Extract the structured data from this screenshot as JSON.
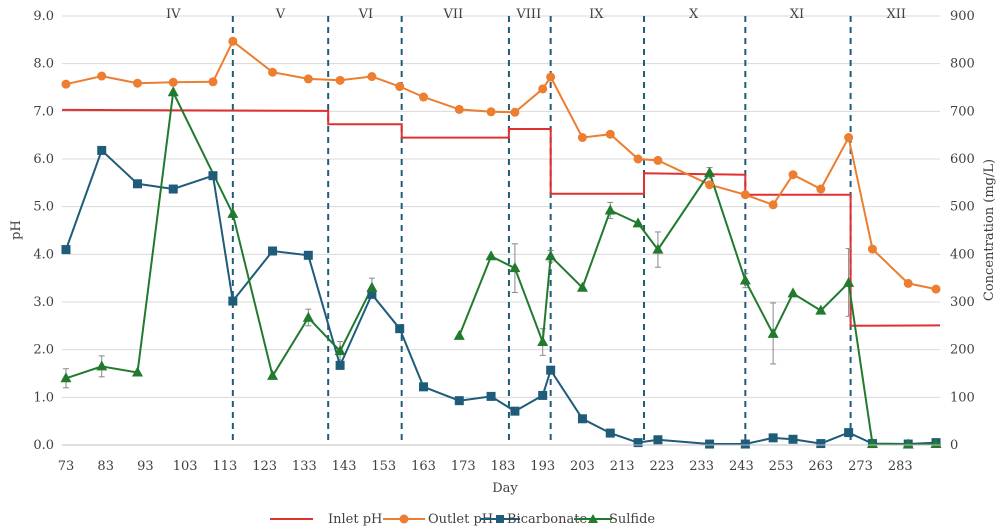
{
  "chart_data": {
    "type": "line",
    "title": "",
    "xlabel": "Day",
    "ylabel_left": "pH",
    "ylabel_right": "Concentration (mg/L)",
    "xlim": [
      72,
      293
    ],
    "ylim_left": [
      0,
      9
    ],
    "ylim_right": [
      0,
      900
    ],
    "x_ticks": [
      73,
      83,
      93,
      103,
      113,
      123,
      133,
      143,
      153,
      163,
      173,
      183,
      193,
      203,
      213,
      223,
      233,
      243,
      253,
      263,
      273,
      283
    ],
    "y_ticks_left": [
      "0.0",
      "1.0",
      "2.0",
      "3.0",
      "4.0",
      "5.0",
      "6.0",
      "7.0",
      "8.0",
      "9.0"
    ],
    "y_ticks_right": [
      "0",
      "100",
      "200",
      "300",
      "400",
      "500",
      "600",
      "700",
      "800",
      "900"
    ],
    "grid": "horizontal",
    "legend_position": "bottom",
    "phase_boundaries": [
      115,
      139,
      157.5,
      184.5,
      195,
      218.5,
      244,
      270.5
    ],
    "phases": [
      {
        "label": "IV",
        "x": 100
      },
      {
        "label": "V",
        "x": 127
      },
      {
        "label": "VI",
        "x": 148.5
      },
      {
        "label": "VII",
        "x": 170.5
      },
      {
        "label": "VIII",
        "x": 189.5
      },
      {
        "label": "IX",
        "x": 206.5
      },
      {
        "label": "X",
        "x": 231
      },
      {
        "label": "XI",
        "x": 257
      },
      {
        "label": "XII",
        "x": 282
      }
    ],
    "series": [
      {
        "name": "Inlet pH",
        "axis": "left",
        "style": "step",
        "color": "#e03030",
        "x": [
          72,
          139,
          139,
          157.5,
          157.5,
          184.5,
          184.5,
          195,
          195,
          218.5,
          218.5,
          244,
          244,
          270.5,
          270.5,
          293
        ],
        "y": [
          7.03,
          7.01,
          6.73,
          6.73,
          6.45,
          6.45,
          6.63,
          6.63,
          5.27,
          5.27,
          5.7,
          5.67,
          5.25,
          5.25,
          2.5,
          2.51
        ]
      },
      {
        "name": "Outlet pH",
        "axis": "left",
        "marker": "circle",
        "color": "#ed7d31",
        "x": [
          73,
          82,
          91,
          100,
          110,
          115,
          125,
          134,
          142,
          150,
          157,
          163,
          172,
          180,
          186,
          193,
          195,
          203,
          210,
          217,
          222,
          235,
          244,
          251,
          256,
          263,
          270,
          276,
          285,
          292
        ],
        "y": [
          7.57,
          7.74,
          7.59,
          7.61,
          7.62,
          8.47,
          7.82,
          7.68,
          7.65,
          7.73,
          7.52,
          7.3,
          7.04,
          6.99,
          6.98,
          7.47,
          7.72,
          6.45,
          6.52,
          6.0,
          5.97,
          5.46,
          5.25,
          5.04,
          5.67,
          5.37,
          6.45,
          4.11,
          3.39,
          3.27
        ]
      },
      {
        "name": "Bicarbonate",
        "axis": "right",
        "marker": "square",
        "color": "#1f5c7a",
        "x": [
          73,
          82,
          91,
          100,
          110,
          115,
          125,
          134,
          142,
          150,
          157,
          163,
          172,
          180,
          186,
          193,
          195,
          203,
          210,
          217,
          222,
          235,
          244,
          251,
          256,
          263,
          270,
          276,
          285,
          292
        ],
        "y": [
          410,
          618,
          548,
          537,
          565,
          302,
          407,
          398,
          167,
          316,
          244,
          122,
          93,
          102,
          71,
          104,
          157,
          55,
          25,
          5,
          11,
          2,
          2,
          15,
          12,
          3,
          26,
          3,
          2,
          5
        ]
      },
      {
        "name": "Sulfide",
        "axis": "right",
        "marker": "triangle",
        "color": "#217a2e",
        "segments": [
          {
            "x": [
              73,
              82,
              91,
              100,
              115,
              125,
              134,
              142,
              150
            ],
            "y": [
              140,
              165,
              152,
              740,
              485,
              145,
              267,
              197,
              330
            ]
          },
          {
            "x": [
              172,
              180,
              186,
              193,
              195,
              203,
              210,
              217,
              222,
              235,
              244,
              251,
              256,
              263,
              270,
              276,
              285,
              292
            ],
            "y": [
              229,
              396,
              371,
              216,
              396,
              330,
              492,
              465,
              410,
              571,
              345,
              233,
              318,
              282,
              340,
              2,
              1,
              2
            ]
          }
        ],
        "error_bars": [
          {
            "x": 73,
            "low": 120,
            "high": 160
          },
          {
            "x": 82,
            "low": 143,
            "high": 187
          },
          {
            "x": 134,
            "low": 250,
            "high": 285
          },
          {
            "x": 142,
            "low": 178,
            "high": 217
          },
          {
            "x": 150,
            "low": 310,
            "high": 350
          },
          {
            "x": 186,
            "low": 320,
            "high": 422
          },
          {
            "x": 193,
            "low": 188,
            "high": 244
          },
          {
            "x": 195,
            "low": 384,
            "high": 408
          },
          {
            "x": 210,
            "low": 475,
            "high": 509
          },
          {
            "x": 222,
            "low": 373,
            "high": 447
          },
          {
            "x": 235,
            "low": 560,
            "high": 582
          },
          {
            "x": 244,
            "low": 330,
            "high": 360
          },
          {
            "x": 251,
            "low": 170,
            "high": 298
          },
          {
            "x": 270,
            "low": 270,
            "high": 412
          }
        ]
      }
    ]
  }
}
